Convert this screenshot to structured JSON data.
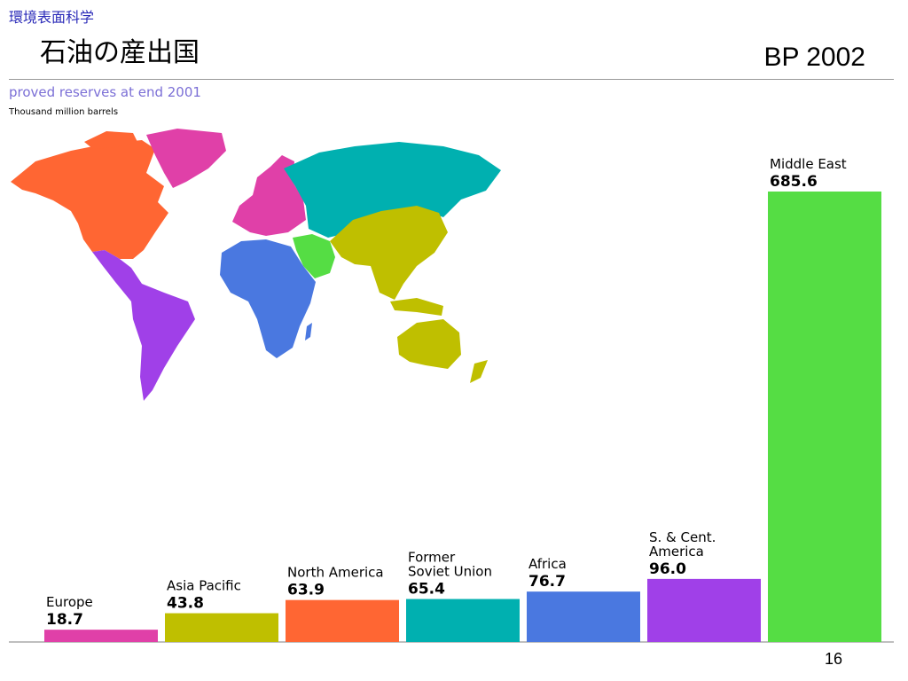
{
  "header": {
    "course": "環境表面科学",
    "title": "石油の産出国",
    "source": "BP 2002",
    "page_number": "16"
  },
  "chart_data": {
    "type": "bar",
    "title": "proved reserves at end 2001",
    "ylabel": "Thousand million barrels",
    "categories": [
      "Europe",
      "Asia Pacific",
      "North America",
      "Former Soviet Union",
      "Africa",
      "S. & Cent. America",
      "Middle East"
    ],
    "category_lines": [
      [
        "Europe"
      ],
      [
        "Asia Pacific"
      ],
      [
        "North America"
      ],
      [
        "Former",
        "Soviet Union"
      ],
      [
        "Africa"
      ],
      [
        "S. & Cent.",
        "America"
      ],
      [
        "Middle East"
      ]
    ],
    "values": [
      18.7,
      43.8,
      63.9,
      65.4,
      76.7,
      96.0,
      685.6
    ],
    "value_labels": [
      "18.7",
      "43.8",
      "63.9",
      "65.4",
      "76.7",
      "96.0",
      "685.6"
    ],
    "colors": [
      "#e040a8",
      "#bfbf00",
      "#ff6633",
      "#00b0b0",
      "#4a78e0",
      "#a040e8",
      "#55dd44"
    ],
    "ylim": [
      0,
      685.6
    ],
    "grid": false,
    "legend": "none",
    "map": {
      "regions": [
        "North America",
        "Europe",
        "Former Soviet Union",
        "Middle East",
        "Africa",
        "Asia Pacific",
        "S. & Cent. America"
      ]
    }
  }
}
